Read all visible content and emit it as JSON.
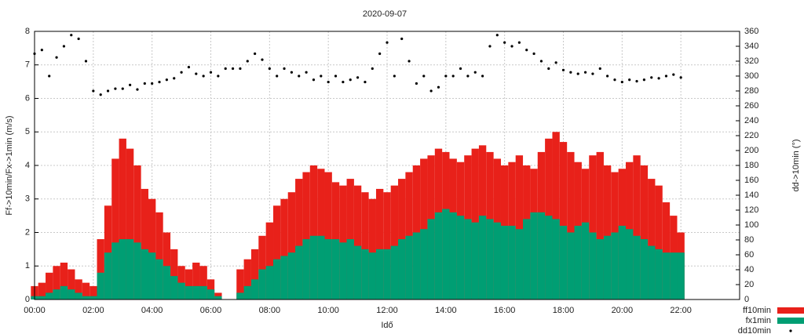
{
  "chart_data": {
    "type": "bar",
    "title": "2020-09-07",
    "xlabel": "Idő",
    "ylabel": "Ff->10min/Fx->1min (m/s)",
    "y2label": "dd->10min (°)",
    "grid": true,
    "xlim": [
      0,
      24
    ],
    "xticks": [
      {
        "value": 0,
        "label": "00:00"
      },
      {
        "value": 2,
        "label": "02:00"
      },
      {
        "value": 4,
        "label": "04:00"
      },
      {
        "value": 6,
        "label": "06:00"
      },
      {
        "value": 8,
        "label": "08:00"
      },
      {
        "value": 10,
        "label": "10:00"
      },
      {
        "value": 12,
        "label": "12:00"
      },
      {
        "value": 14,
        "label": "14:00"
      },
      {
        "value": 16,
        "label": "16:00"
      },
      {
        "value": 18,
        "label": "18:00"
      },
      {
        "value": 20,
        "label": "20:00"
      },
      {
        "value": 22,
        "label": "22:00"
      }
    ],
    "ylim": [
      0,
      8
    ],
    "yticks": [
      0,
      1,
      2,
      3,
      4,
      5,
      6,
      7,
      8
    ],
    "y2lim": [
      0,
      360
    ],
    "y2ticks": [
      0,
      20,
      40,
      60,
      80,
      100,
      120,
      140,
      160,
      180,
      200,
      220,
      240,
      260,
      280,
      300,
      320,
      340,
      360
    ],
    "x": [
      0,
      0.25,
      0.5,
      0.75,
      1,
      1.25,
      1.5,
      1.75,
      2,
      2.25,
      2.5,
      2.75,
      3,
      3.25,
      3.5,
      3.75,
      4,
      4.25,
      4.5,
      4.75,
      5,
      5.25,
      5.5,
      5.75,
      6,
      6.25,
      6.5,
      6.75,
      7,
      7.25,
      7.5,
      7.75,
      8,
      8.25,
      8.5,
      8.75,
      9,
      9.25,
      9.5,
      9.75,
      10,
      10.25,
      10.5,
      10.75,
      11,
      11.25,
      11.5,
      11.75,
      12,
      12.25,
      12.5,
      12.75,
      13,
      13.25,
      13.5,
      13.75,
      14,
      14.25,
      14.5,
      14.75,
      15,
      15.25,
      15.5,
      15.75,
      16,
      16.25,
      16.5,
      16.75,
      17,
      17.25,
      17.5,
      17.75,
      18,
      18.25,
      18.5,
      18.75,
      19,
      19.25,
      19.5,
      19.75,
      20,
      20.25,
      20.5,
      20.75,
      21,
      21.25,
      21.5,
      21.75,
      22
    ],
    "series": [
      {
        "name": "ff10min",
        "type": "bar",
        "color": "#e8211a",
        "values": [
          0.4,
          0.5,
          0.8,
          1.0,
          1.1,
          0.9,
          0.6,
          0.5,
          0.4,
          1.8,
          2.8,
          4.2,
          4.8,
          4.5,
          4.0,
          3.3,
          3.0,
          2.6,
          2.0,
          1.5,
          1.0,
          0.9,
          1.1,
          1.0,
          0.6,
          0.2,
          0,
          0,
          0.9,
          1.2,
          1.5,
          1.9,
          2.3,
          2.8,
          3.0,
          3.2,
          3.6,
          3.8,
          4.0,
          3.9,
          3.8,
          3.5,
          3.4,
          3.6,
          3.4,
          3.2,
          3.0,
          3.3,
          3.2,
          3.4,
          3.6,
          3.8,
          4.0,
          4.2,
          4.3,
          4.5,
          4.4,
          4.2,
          4.1,
          4.3,
          4.5,
          4.6,
          4.4,
          4.2,
          4.0,
          4.1,
          4.3,
          4.0,
          3.9,
          4.4,
          4.8,
          5.0,
          4.7,
          4.4,
          4.1,
          3.9,
          4.3,
          4.4,
          4.0,
          3.8,
          3.9,
          4.1,
          4.3,
          4.0,
          3.6,
          3.4,
          2.9,
          2.5,
          2.0
        ]
      },
      {
        "name": "fx1min",
        "type": "bar",
        "color": "#009e73",
        "values": [
          0.1,
          0.1,
          0.2,
          0.3,
          0.4,
          0.3,
          0.2,
          0.1,
          0.1,
          0.8,
          1.4,
          1.7,
          1.8,
          1.8,
          1.7,
          1.5,
          1.4,
          1.2,
          1.0,
          0.7,
          0.5,
          0.4,
          0.4,
          0.4,
          0.3,
          0.1,
          0,
          0,
          0.2,
          0.4,
          0.6,
          0.9,
          1.0,
          1.2,
          1.3,
          1.4,
          1.6,
          1.8,
          1.9,
          1.9,
          1.8,
          1.8,
          1.7,
          1.8,
          1.6,
          1.5,
          1.4,
          1.5,
          1.5,
          1.6,
          1.8,
          1.9,
          2.0,
          2.1,
          2.4,
          2.6,
          2.7,
          2.6,
          2.5,
          2.4,
          2.3,
          2.5,
          2.4,
          2.3,
          2.2,
          2.2,
          2.1,
          2.4,
          2.6,
          2.6,
          2.5,
          2.4,
          2.2,
          2.0,
          2.2,
          2.3,
          2.0,
          1.8,
          1.9,
          2.0,
          2.2,
          2.1,
          1.9,
          1.8,
          1.6,
          1.5,
          1.4,
          1.4,
          1.4
        ]
      },
      {
        "name": "dd10min",
        "type": "scatter",
        "axis": "y2",
        "color": "#000000",
        "values": [
          330,
          335,
          300,
          325,
          340,
          355,
          350,
          320,
          280,
          275,
          280,
          283,
          283,
          288,
          282,
          290,
          290,
          292,
          295,
          297,
          305,
          312,
          303,
          300,
          305,
          300,
          310,
          310,
          310,
          320,
          330,
          322,
          310,
          300,
          310,
          305,
          300,
          305,
          295,
          300,
          292,
          300,
          292,
          295,
          298,
          292,
          310,
          330,
          345,
          300,
          350,
          320,
          290,
          300,
          280,
          285,
          300,
          300,
          310,
          300,
          305,
          300,
          340,
          355,
          345,
          340,
          345,
          335,
          330,
          320,
          310,
          318,
          308,
          305,
          303,
          305,
          303,
          310,
          300,
          295,
          292,
          295,
          293,
          295,
          298,
          297,
          300,
          302,
          298
        ]
      }
    ]
  }
}
